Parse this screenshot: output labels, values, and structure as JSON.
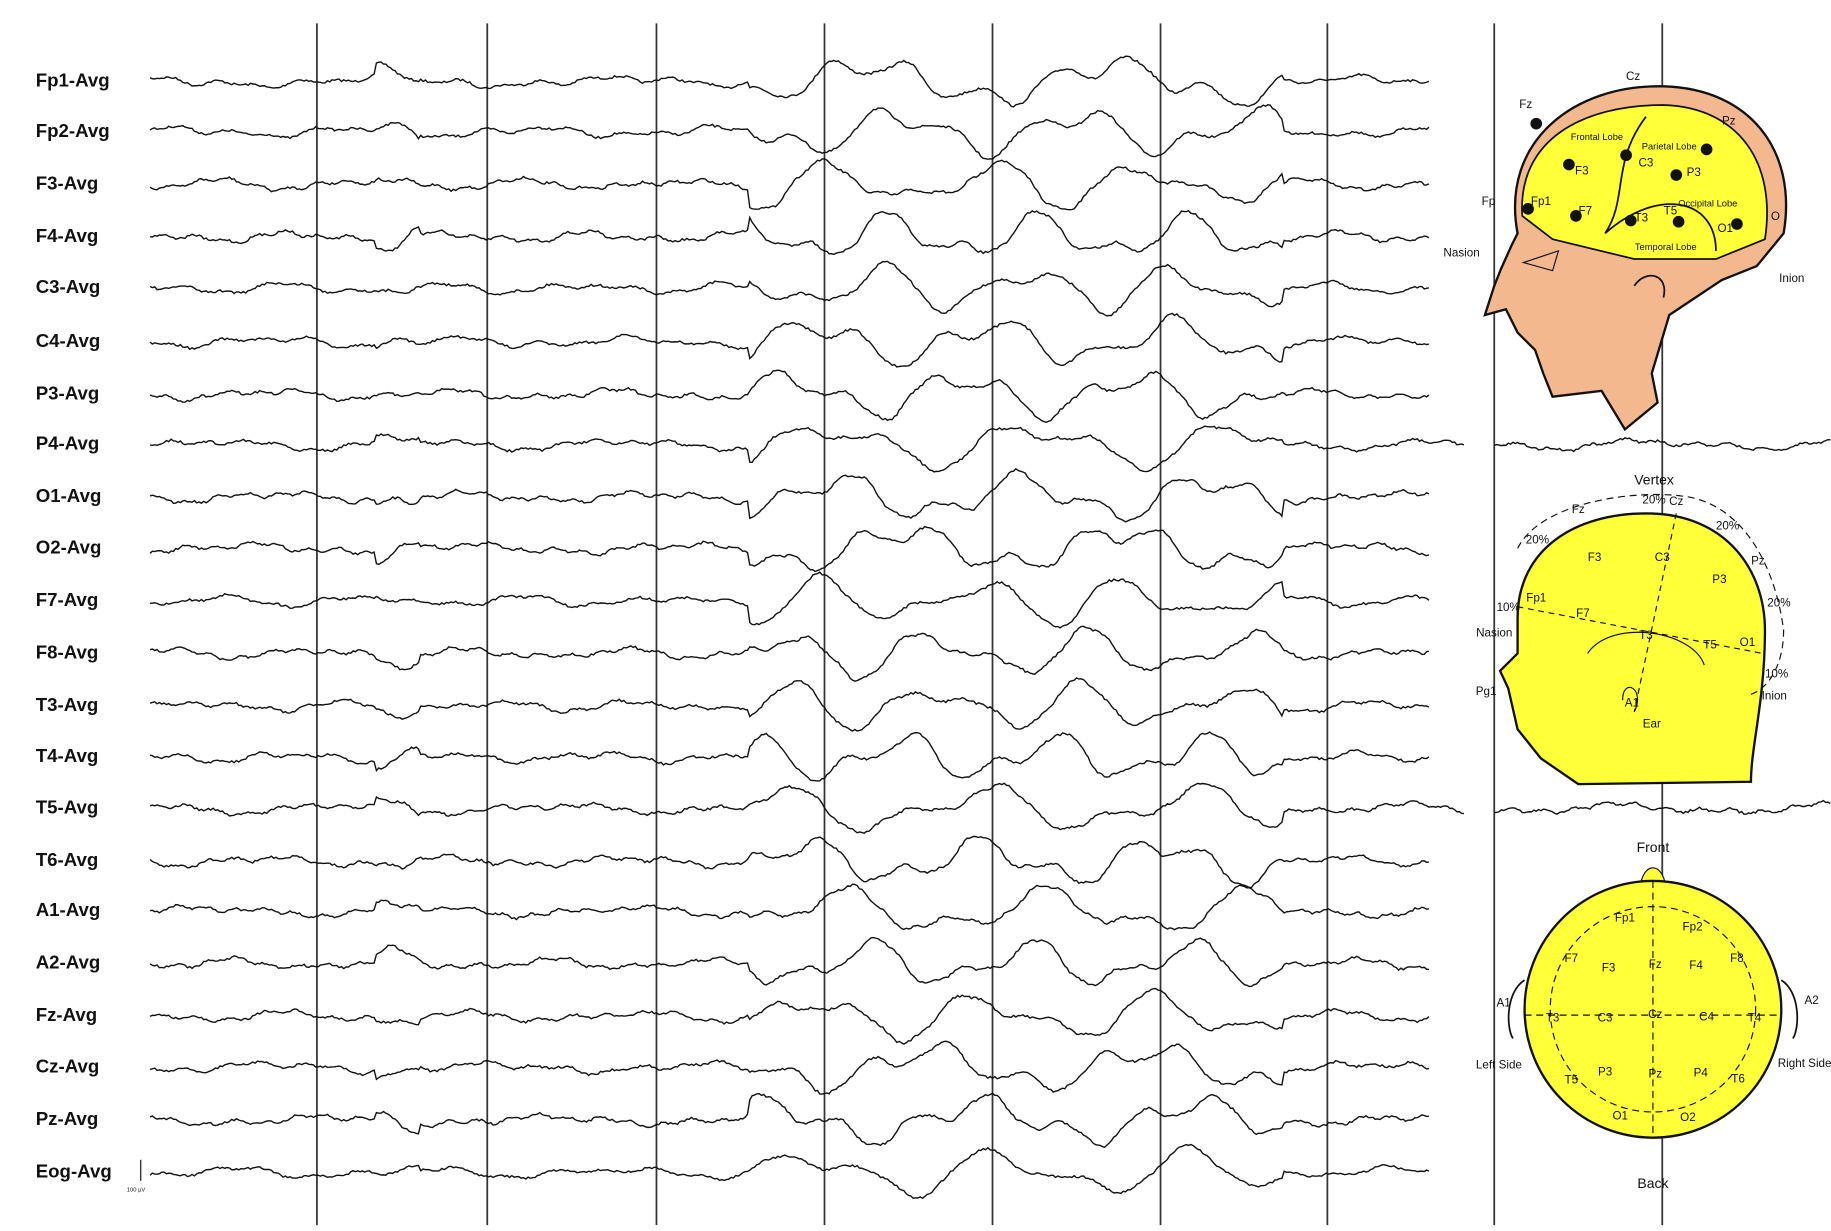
{
  "eeg": {
    "channels": [
      "Fp1-Avg",
      "Fp2-Avg",
      "F3-Avg",
      "F4-Avg",
      "C3-Avg",
      "C4-Avg",
      "P3-Avg",
      "P4-Avg",
      "O1-Avg",
      "O2-Avg",
      "F7-Avg",
      "F8-Avg",
      "T3-Avg",
      "T4-Avg",
      "T5-Avg",
      "T6-Avg",
      "A1-Avg",
      "A2-Avg",
      "Fz-Avg",
      "Cz-Avg",
      "Pz-Avg",
      "Eog-Avg"
    ],
    "scale_label": "100 µV"
  },
  "diagrams": [
    {
      "labels": [
        "Cz",
        "Fz",
        "Pz",
        "Fp",
        "Fp1",
        "F3",
        "F7",
        "C3",
        "P3",
        "T3",
        "T5",
        "O1",
        "O",
        "Nasion",
        "Inion",
        "Frontal Lobe",
        "Parietal Lobe",
        "Occipital Lobe",
        "Temporal Lobe"
      ]
    },
    {
      "labels": [
        "Vertex",
        "20%",
        "20%",
        "20%",
        "20%",
        "10%",
        "10%",
        "Fz",
        "Cz",
        "Pz",
        "F3",
        "C3",
        "P3",
        "Fp1",
        "F7",
        "T3",
        "T5",
        "O1",
        "Nasion",
        "Inion",
        "Pg1",
        "A1",
        "Ear"
      ]
    },
    {
      "labels": [
        "Front",
        "Back",
        "Fp1",
        "Fp2",
        "F7",
        "F3",
        "Fz",
        "F4",
        "F8",
        "A1",
        "A2",
        "T3",
        "C3",
        "Cz",
        "C4",
        "T4",
        "Left Side",
        "Right Side",
        "T5",
        "P3",
        "Pz",
        "P4",
        "T6",
        "O1",
        "O2"
      ]
    }
  ]
}
